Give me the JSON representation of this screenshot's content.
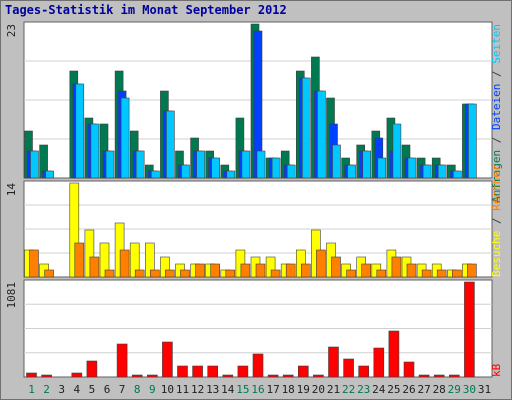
{
  "window": {
    "title": "Tages-Statistik im Monat September 2012"
  },
  "colors": {
    "background": "#c0c0c0",
    "plot_bg": "#ffffff",
    "anfragen": "#007850",
    "dateien": "#0040ff",
    "seiten": "#00c8ff",
    "besuche": "#ffff00",
    "rechner": "#ff8000",
    "kb": "#ff0000",
    "weekend_label": "#007850",
    "title": "#0000a0"
  },
  "chart_data": [
    {
      "type": "bar",
      "panel": "top",
      "ylim": [
        0,
        23
      ],
      "ytick_label": "23",
      "categories": [
        "1",
        "2",
        "3",
        "4",
        "5",
        "6",
        "7",
        "8",
        "9",
        "10",
        "11",
        "12",
        "13",
        "14",
        "15",
        "16",
        "17",
        "18",
        "19",
        "20",
        "21",
        "22",
        "23",
        "24",
        "25",
        "26",
        "27",
        "28",
        "29",
        "30",
        "31"
      ],
      "weekend_days": [
        "1",
        "2",
        "8",
        "9",
        "15",
        "16",
        "22",
        "23",
        "29",
        "30"
      ],
      "series": [
        {
          "name": "Anfragen",
          "values": [
            7,
            5,
            0,
            16,
            9,
            8,
            16,
            7,
            2,
            13,
            4,
            6,
            4,
            2,
            9,
            23,
            3,
            4,
            16,
            18,
            12,
            3,
            5,
            7,
            9,
            5,
            3,
            3,
            2,
            11,
            0
          ]
        },
        {
          "name": "Dateien",
          "values": [
            4,
            1,
            0,
            14,
            8,
            4,
            13,
            4,
            1,
            10,
            2,
            4,
            3,
            1,
            4,
            22,
            3,
            2,
            15,
            13,
            8,
            2,
            4,
            6,
            4,
            3,
            2,
            2,
            1,
            11,
            0
          ]
        },
        {
          "name": "Seiten",
          "values": [
            4,
            1,
            0,
            14,
            8,
            4,
            12,
            4,
            1,
            10,
            2,
            4,
            3,
            1,
            4,
            4,
            3,
            2,
            15,
            13,
            5,
            2,
            4,
            3,
            8,
            3,
            2,
            2,
            1,
            11,
            0
          ]
        }
      ],
      "legend": [
        "Anfragen",
        "Dateien",
        "Seiten"
      ]
    },
    {
      "type": "bar",
      "panel": "middle",
      "ylim": [
        0,
        14
      ],
      "ytick_label": "14",
      "series": [
        {
          "name": "Besuche",
          "values": [
            4,
            2,
            0,
            14,
            7,
            5,
            8,
            5,
            5,
            3,
            2,
            2,
            2,
            1,
            4,
            3,
            3,
            2,
            4,
            7,
            5,
            2,
            3,
            2,
            4,
            3,
            2,
            2,
            1,
            2,
            0
          ]
        },
        {
          "name": "Rechner",
          "values": [
            4,
            1,
            0,
            5,
            3,
            1,
            4,
            1,
            1,
            1,
            1,
            2,
            2,
            1,
            2,
            2,
            1,
            2,
            2,
            4,
            3,
            1,
            2,
            1,
            3,
            2,
            1,
            1,
            1,
            2,
            0
          ]
        }
      ],
      "legend": [
        "Besuche",
        "Rechner"
      ]
    },
    {
      "type": "bar",
      "panel": "bottom",
      "ylim": [
        0,
        1081
      ],
      "ytick_label": "1081",
      "series": [
        {
          "name": "kB",
          "values": [
            40,
            10,
            0,
            50,
            180,
            0,
            370,
            10,
            10,
            400,
            120,
            120,
            120,
            10,
            120,
            260,
            10,
            10,
            120,
            20,
            340,
            210,
            130,
            330,
            520,
            170,
            10,
            10,
            10,
            1081,
            0
          ]
        }
      ],
      "legend": [
        "kB"
      ]
    }
  ]
}
